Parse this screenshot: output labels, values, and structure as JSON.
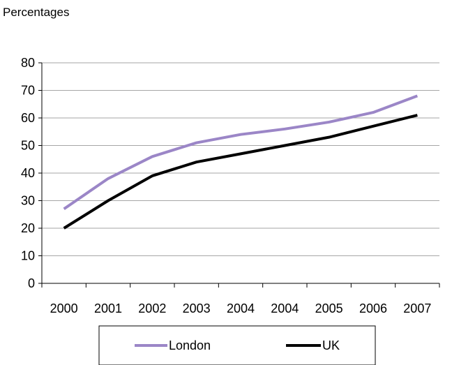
{
  "chart_data": {
    "type": "line",
    "ylabel": "Percentages",
    "categories": [
      "2000",
      "2001",
      "2002",
      "2003",
      "2004",
      "2004",
      "2005",
      "2006",
      "2007"
    ],
    "ylim": [
      0,
      80
    ],
    "yticks": [
      0,
      10,
      20,
      30,
      40,
      50,
      60,
      70,
      80
    ],
    "grid": true,
    "legend_position": "bottom",
    "series": [
      {
        "name": "London",
        "color": "#9b86c7",
        "values": [
          27,
          38,
          46,
          51,
          54,
          56,
          58.5,
          62,
          68
        ]
      },
      {
        "name": "UK",
        "color": "#000000",
        "values": [
          20,
          30,
          39,
          44,
          47,
          50,
          53,
          57,
          61
        ]
      }
    ]
  }
}
